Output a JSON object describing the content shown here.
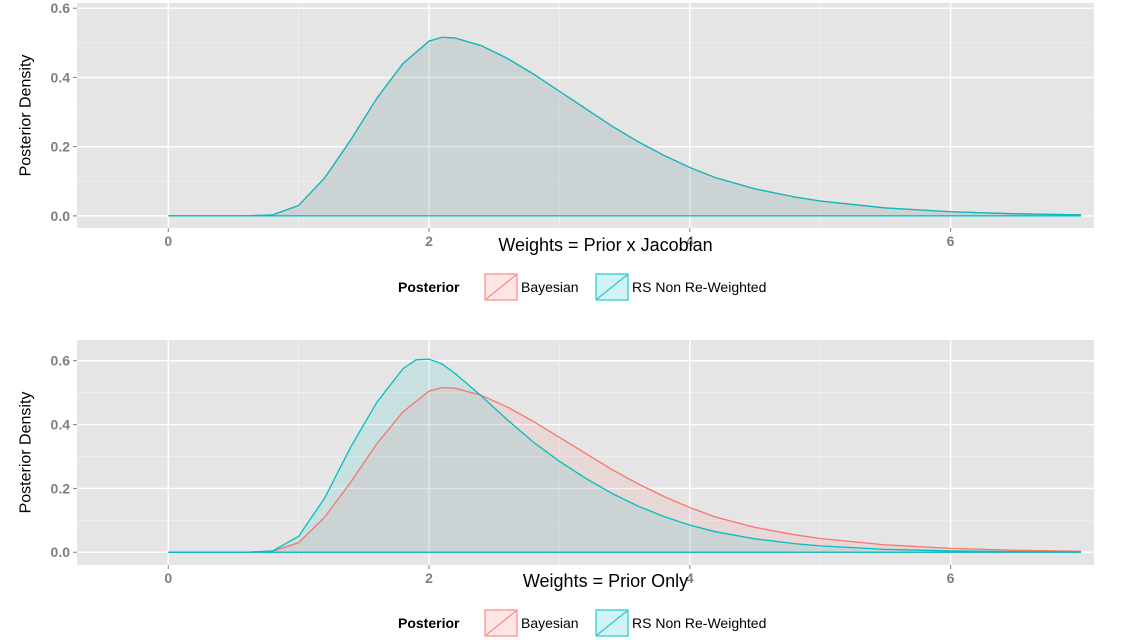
{
  "chart_data": [
    {
      "type": "area",
      "ylabel": "Posterior Density",
      "xlabel": "Weights = Prior x Jacobian",
      "xlim": [
        -0.7,
        7.1
      ],
      "ylim": [
        -0.035,
        0.615
      ],
      "x_ticks": [
        0,
        2,
        4,
        6
      ],
      "x_tick_labels": [
        "0",
        "2",
        "4",
        "6"
      ],
      "y_ticks": [
        0.0,
        0.2,
        0.4,
        0.6
      ],
      "y_tick_labels": [
        "0.0",
        "0.2",
        "0.4",
        "0.6"
      ],
      "grid": true,
      "legend": {
        "title": "Posterior",
        "position": "bottom",
        "items": [
          "Bayesian",
          "RS Non Re-Weighted"
        ]
      },
      "series": [
        {
          "name": "Bayesian",
          "color": "#F8766D",
          "x": [
            0,
            0.6,
            0.8,
            1.0,
            1.2,
            1.4,
            1.6,
            1.8,
            2.0,
            2.1,
            2.2,
            2.4,
            2.6,
            2.8,
            3.0,
            3.2,
            3.4,
            3.6,
            3.8,
            4.0,
            4.2,
            4.5,
            4.8,
            5.0,
            5.5,
            6.0,
            6.5,
            7.0
          ],
          "values": [
            0,
            0.0,
            0.003,
            0.03,
            0.11,
            0.22,
            0.34,
            0.44,
            0.505,
            0.516,
            0.514,
            0.492,
            0.455,
            0.41,
            0.36,
            0.31,
            0.26,
            0.215,
            0.175,
            0.14,
            0.11,
            0.078,
            0.055,
            0.043,
            0.023,
            0.012,
            0.006,
            0.003
          ]
        },
        {
          "name": "RS Non Re-Weighted",
          "color": "#00BFC4",
          "x": [
            0,
            0.6,
            0.8,
            1.0,
            1.2,
            1.4,
            1.6,
            1.8,
            2.0,
            2.1,
            2.2,
            2.4,
            2.6,
            2.8,
            3.0,
            3.2,
            3.4,
            3.6,
            3.8,
            4.0,
            4.2,
            4.5,
            4.8,
            5.0,
            5.5,
            6.0,
            6.5,
            7.0
          ],
          "values": [
            0,
            0.0,
            0.003,
            0.03,
            0.11,
            0.22,
            0.34,
            0.44,
            0.505,
            0.516,
            0.514,
            0.492,
            0.455,
            0.41,
            0.36,
            0.31,
            0.26,
            0.215,
            0.175,
            0.14,
            0.11,
            0.078,
            0.055,
            0.043,
            0.023,
            0.012,
            0.006,
            0.003
          ]
        }
      ]
    },
    {
      "type": "area",
      "ylabel": "Posterior Density",
      "xlabel": "Weights = Prior Only",
      "xlim": [
        -0.7,
        7.1
      ],
      "ylim": [
        -0.04,
        0.665
      ],
      "x_ticks": [
        0,
        2,
        4,
        6
      ],
      "x_tick_labels": [
        "0",
        "2",
        "4",
        "6"
      ],
      "y_ticks": [
        0.0,
        0.2,
        0.4,
        0.6
      ],
      "y_tick_labels": [
        "0.0",
        "0.2",
        "0.4",
        "0.6"
      ],
      "grid": true,
      "legend": {
        "title": "Posterior",
        "position": "bottom",
        "items": [
          "Bayesian",
          "RS Non Re-Weighted"
        ]
      },
      "series": [
        {
          "name": "Bayesian",
          "color": "#F8766D",
          "x": [
            0,
            0.6,
            0.8,
            1.0,
            1.2,
            1.4,
            1.6,
            1.8,
            2.0,
            2.1,
            2.2,
            2.4,
            2.6,
            2.8,
            3.0,
            3.2,
            3.4,
            3.6,
            3.8,
            4.0,
            4.2,
            4.5,
            4.8,
            5.0,
            5.5,
            6.0,
            6.5,
            7.0
          ],
          "values": [
            0,
            0.0,
            0.003,
            0.03,
            0.11,
            0.22,
            0.34,
            0.44,
            0.505,
            0.516,
            0.514,
            0.492,
            0.455,
            0.41,
            0.36,
            0.31,
            0.26,
            0.215,
            0.175,
            0.14,
            0.11,
            0.078,
            0.055,
            0.043,
            0.023,
            0.012,
            0.006,
            0.003
          ]
        },
        {
          "name": "RS Non Re-Weighted",
          "color": "#00BFC4",
          "x": [
            0,
            0.6,
            0.8,
            1.0,
            1.2,
            1.4,
            1.6,
            1.8,
            1.9,
            2.0,
            2.1,
            2.2,
            2.4,
            2.6,
            2.8,
            3.0,
            3.2,
            3.4,
            3.6,
            3.8,
            4.0,
            4.2,
            4.5,
            4.8,
            5.0,
            5.5,
            6.0,
            6.5,
            7.0
          ],
          "values": [
            0,
            0.0,
            0.004,
            0.05,
            0.17,
            0.33,
            0.47,
            0.575,
            0.603,
            0.605,
            0.59,
            0.56,
            0.49,
            0.415,
            0.345,
            0.285,
            0.232,
            0.185,
            0.145,
            0.112,
            0.085,
            0.064,
            0.042,
            0.027,
            0.02,
            0.009,
            0.004,
            0.002,
            0.001
          ]
        }
      ]
    }
  ]
}
